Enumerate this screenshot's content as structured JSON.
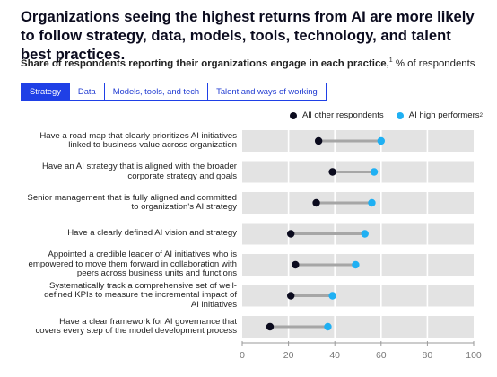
{
  "header": {
    "title": "Organizations seeing the highest returns from AI are more likely to follow strategy, data, models, tools, technology, and talent best practices.",
    "subtitle_bold": "Share of respondents reporting their organizations engage in each practice,",
    "subtitle_sup": "1",
    "subtitle_rest": " % of respondents"
  },
  "tabs": [
    {
      "label": "Strategy",
      "active": true
    },
    {
      "label": "Data",
      "active": false
    },
    {
      "label": "Models, tools, and tech",
      "active": false
    },
    {
      "label": "Talent and ways of working",
      "active": false
    }
  ],
  "colors": {
    "all_respondents": "#0b0b1e",
    "ai_high_performers": "#1fb0f3",
    "connector": "#a6a6a6",
    "row_band": "#e3e3e3",
    "tab_accent": "#1f40e6"
  },
  "chart_data": {
    "type": "scatter",
    "subtype": "dot-plot",
    "xlim": [
      0,
      100
    ],
    "xticks": [
      "0",
      "20",
      "40",
      "60",
      "80",
      "100"
    ],
    "legend_placement": "top-right",
    "series": [
      {
        "name": "All other respondents",
        "sup": "",
        "key": "all"
      },
      {
        "name": "AI high performers",
        "sup": "2",
        "key": "high"
      }
    ],
    "rows": [
      {
        "label_lines": [
          "Have a road map that clearly prioritizes AI initiatives",
          "linked to business value across organization"
        ],
        "all": 33,
        "high": 60
      },
      {
        "label_lines": [
          "Have an AI strategy that is aligned with the broader",
          "corporate strategy and goals"
        ],
        "all": 39,
        "high": 57
      },
      {
        "label_lines": [
          "Senior management that is fully aligned and committed",
          "to organization's AI strategy"
        ],
        "all": 32,
        "high": 56
      },
      {
        "label_lines": [
          "Have a clearly defined AI vision and strategy"
        ],
        "all": 21,
        "high": 53
      },
      {
        "label_lines": [
          "Appointed a credible leader of AI initiatives who is",
          "empowered to move them forward in collaboration with",
          "peers across business units and functions"
        ],
        "all": 23,
        "high": 49
      },
      {
        "label_lines": [
          "Systematically track a comprehensive set of well-",
          "defined KPIs to measure the incremental impact of",
          "AI initiatives"
        ],
        "all": 21,
        "high": 39
      },
      {
        "label_lines": [
          "Have a clear framework for AI governance that",
          "covers every step of the model development process"
        ],
        "all": 12,
        "high": 37
      }
    ]
  }
}
